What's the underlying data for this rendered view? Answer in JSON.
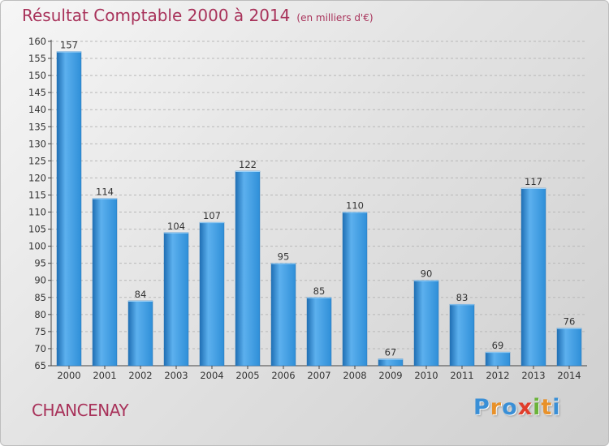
{
  "title": "Résultat Comptable 2000 à 2014",
  "unit": "(en milliers d'€)",
  "location": "CHANCENAY",
  "logo": {
    "text": "Proxiti",
    "letters": [
      "P",
      "r",
      "o",
      "x",
      "i",
      "t",
      "i"
    ],
    "colors": [
      "#3a8fd6",
      "#e8912a",
      "#3a8fd6",
      "#e03d2b",
      "#6bb33a",
      "#e8912a",
      "#3a8fd6"
    ]
  },
  "colors": {
    "title": "#a8325a",
    "bar": "#2f8fd8",
    "bar_light": "#5cb0ee",
    "bar_dark": "#1f6fb4",
    "axis": "#444444",
    "grid": "#b8b8b8"
  },
  "chart_data": {
    "type": "bar",
    "title": "Résultat Comptable 2000 à 2014",
    "ylabel": "(en milliers d'€)",
    "xlabel": "",
    "categories": [
      "2000",
      "2001",
      "2002",
      "2003",
      "2004",
      "2005",
      "2006",
      "2007",
      "2008",
      "2009",
      "2010",
      "2011",
      "2012",
      "2013",
      "2014"
    ],
    "values": [
      157,
      114,
      84,
      104,
      107,
      122,
      95,
      85,
      110,
      67,
      90,
      83,
      69,
      117,
      76
    ],
    "ylim": [
      65,
      160
    ],
    "yticks": [
      65,
      70,
      75,
      80,
      85,
      90,
      95,
      100,
      105,
      110,
      115,
      120,
      125,
      130,
      135,
      140,
      145,
      150,
      155,
      160
    ],
    "grid": true
  }
}
